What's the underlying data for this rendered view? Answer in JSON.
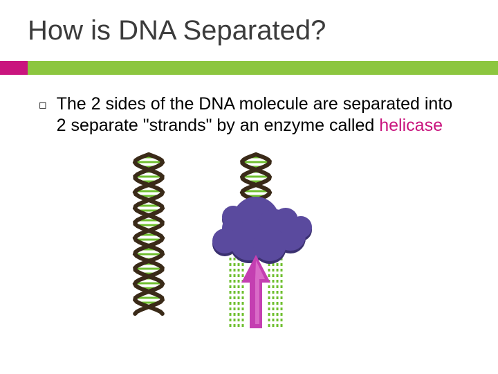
{
  "title": "How is DNA Separated?",
  "accent": {
    "pink": "#c9157e",
    "green": "#8cc63f"
  },
  "bullet": {
    "glyph": "◻",
    "text_before": "The 2 sides of the DNA molecule are separated into 2 separate \"strands\" by an enzyme called ",
    "keyword": "helicase",
    "keyword_color": "#c9157e",
    "fontsize": 25
  },
  "figure": {
    "type": "infographic",
    "background": "#ffffff",
    "helix": {
      "backbone_color": "#3a2a18",
      "rung_color": "#6fbf2f",
      "strand_width": 6
    },
    "enzyme": {
      "fill": "#5a4a9e",
      "shadow": "#3b3170"
    },
    "arrow": {
      "fill": "#c43fb1",
      "highlight": "#e788d6"
    },
    "separated_strands": {
      "color": "#6fbf2f",
      "dash": "4 4",
      "width": 3
    }
  }
}
